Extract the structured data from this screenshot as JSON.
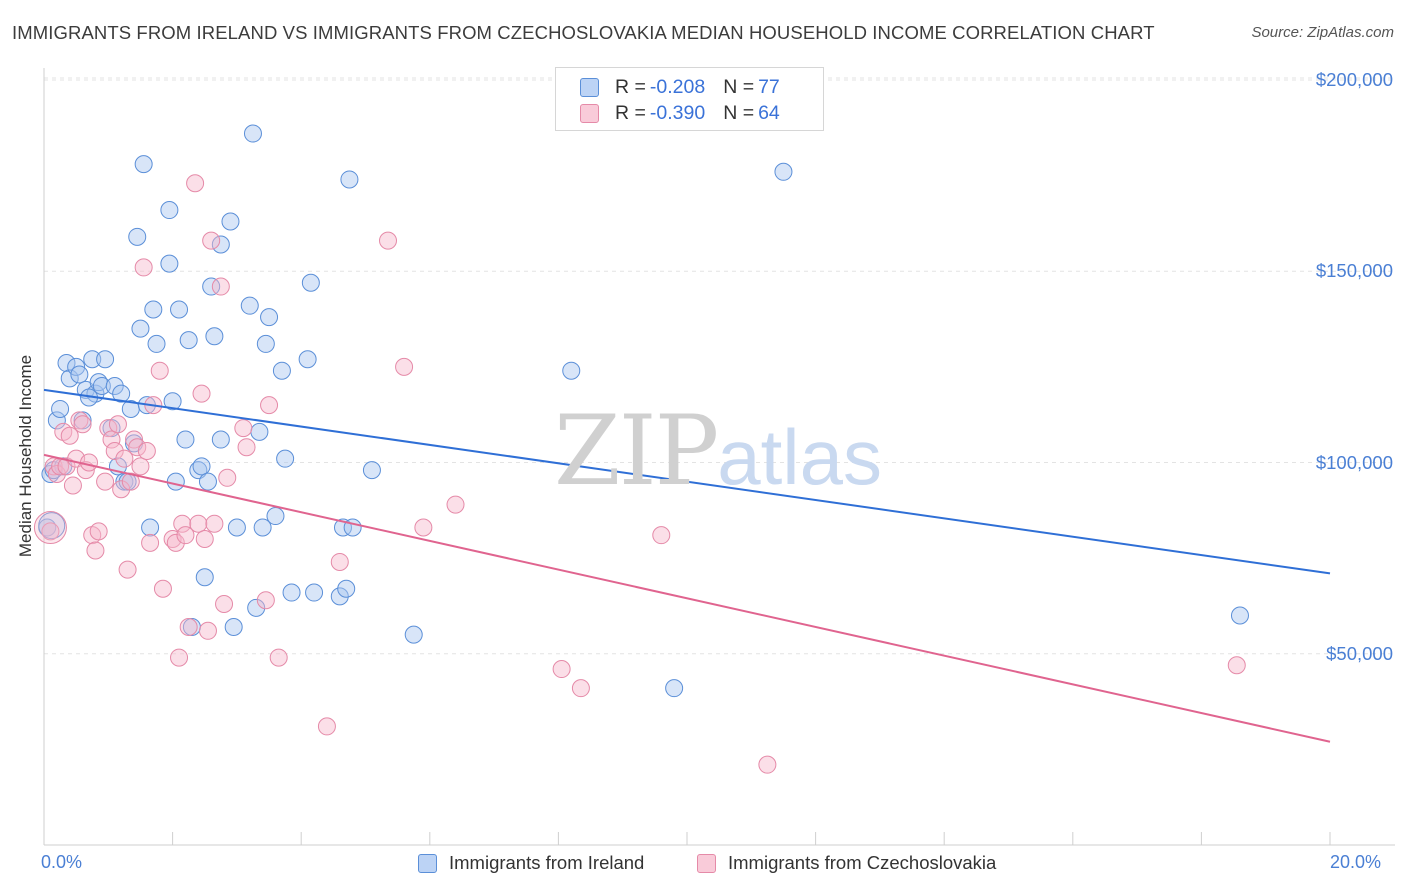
{
  "header": {
    "title": "IMMIGRANTS FROM IRELAND VS IMMIGRANTS FROM CZECHOSLOVAKIA MEDIAN HOUSEHOLD INCOME CORRELATION CHART",
    "source": "Source: ZipAtlas.com"
  },
  "watermark": {
    "zip": "ZIP",
    "atlas": "atlas"
  },
  "legend": {
    "r_key": "R = ",
    "n_key": "N = ",
    "rows": [
      {
        "r": "-0.208",
        "n": "77"
      },
      {
        "r": "-0.390",
        "n": "64"
      }
    ]
  },
  "chart_data": {
    "type": "scatter",
    "title": "IMMIGRANTS FROM IRELAND VS IMMIGRANTS FROM CZECHOSLOVAKIA MEDIAN HOUSEHOLD INCOME CORRELATION CHART",
    "xlabel": "",
    "ylabel": "Median Household Income",
    "xlim": [
      0,
      20
    ],
    "ylim": [
      0,
      205000
    ],
    "x_tick_labels": [
      "0.0%",
      "20.0%"
    ],
    "y_tick_labels": [
      "$200,000",
      "$150,000",
      "$100,000",
      "$50,000"
    ],
    "y_ticks": [
      200000,
      150000,
      100000,
      50000
    ],
    "grid": true,
    "legend_position": "top-center",
    "colors": {
      "ireland_fill": "#a9c6f0",
      "ireland_stroke": "#5b8fd8",
      "ireland_line": "#2f6fd6",
      "czech_fill": "#f6b9cc",
      "czech_stroke": "#e58aa8",
      "czech_line": "#e0648f",
      "axis_text": "#4a7fd4"
    },
    "series": [
      {
        "name": "Immigrants from Ireland",
        "r": -0.208,
        "n": 77,
        "trend": {
          "x": [
            0,
            20
          ],
          "y": [
            119000,
            71000
          ]
        },
        "points": [
          [
            0.1,
            97000
          ],
          [
            0.15,
            98000
          ],
          [
            0.2,
            111000
          ],
          [
            0.25,
            114000
          ],
          [
            0.35,
            126000
          ],
          [
            0.4,
            122000
          ],
          [
            0.5,
            125000
          ],
          [
            0.55,
            123000
          ],
          [
            0.6,
            111000
          ],
          [
            0.65,
            119000
          ],
          [
            0.75,
            127000
          ],
          [
            0.8,
            118000
          ],
          [
            0.85,
            121000
          ],
          [
            0.9,
            120000
          ],
          [
            0.95,
            127000
          ],
          [
            1.05,
            109000
          ],
          [
            1.1,
            120000
          ],
          [
            1.15,
            99000
          ],
          [
            1.2,
            118000
          ],
          [
            1.25,
            95000
          ],
          [
            1.3,
            95000
          ],
          [
            1.35,
            114000
          ],
          [
            1.4,
            105000
          ],
          [
            1.45,
            159000
          ],
          [
            1.5,
            135000
          ],
          [
            1.55,
            178000
          ],
          [
            1.6,
            115000
          ],
          [
            1.65,
            83000
          ],
          [
            1.7,
            140000
          ],
          [
            1.75,
            131000
          ],
          [
            1.95,
            152000
          ],
          [
            1.95,
            166000
          ],
          [
            2.0,
            116000
          ],
          [
            2.05,
            95000
          ],
          [
            2.1,
            140000
          ],
          [
            2.2,
            106000
          ],
          [
            2.25,
            132000
          ],
          [
            2.3,
            57000
          ],
          [
            2.4,
            98000
          ],
          [
            2.45,
            99000
          ],
          [
            2.5,
            70000
          ],
          [
            2.55,
            95000
          ],
          [
            2.6,
            146000
          ],
          [
            2.65,
            133000
          ],
          [
            2.75,
            106000
          ],
          [
            2.75,
            157000
          ],
          [
            2.9,
            163000
          ],
          [
            2.95,
            57000
          ],
          [
            3.0,
            83000
          ],
          [
            3.2,
            141000
          ],
          [
            3.25,
            186000
          ],
          [
            3.3,
            62000
          ],
          [
            3.35,
            108000
          ],
          [
            3.4,
            83000
          ],
          [
            3.45,
            131000
          ],
          [
            3.5,
            138000
          ],
          [
            3.6,
            86000
          ],
          [
            3.7,
            124000
          ],
          [
            3.75,
            101000
          ],
          [
            3.85,
            66000
          ],
          [
            4.1,
            127000
          ],
          [
            4.15,
            147000
          ],
          [
            4.2,
            66000
          ],
          [
            4.6,
            65000
          ],
          [
            4.65,
            83000
          ],
          [
            4.7,
            67000
          ],
          [
            4.75,
            174000
          ],
          [
            4.8,
            83000
          ],
          [
            5.1,
            98000
          ],
          [
            5.75,
            55000
          ],
          [
            8.2,
            124000
          ],
          [
            9.8,
            41000
          ],
          [
            11.5,
            176000
          ],
          [
            18.6,
            60000
          ],
          [
            0.05,
            83000
          ],
          [
            0.3,
            99000
          ],
          [
            0.7,
            117000
          ]
        ]
      },
      {
        "name": "Immigrants from Czechoslovakia",
        "r": -0.39,
        "n": 64,
        "trend": {
          "x": [
            0,
            20
          ],
          "y": [
            102000,
            27000
          ]
        },
        "points": [
          [
            0.1,
            82000
          ],
          [
            0.15,
            99000
          ],
          [
            0.2,
            97000
          ],
          [
            0.25,
            99000
          ],
          [
            0.3,
            108000
          ],
          [
            0.35,
            99000
          ],
          [
            0.4,
            107000
          ],
          [
            0.45,
            94000
          ],
          [
            0.5,
            101000
          ],
          [
            0.55,
            111000
          ],
          [
            0.6,
            110000
          ],
          [
            0.65,
            98000
          ],
          [
            0.7,
            100000
          ],
          [
            0.75,
            81000
          ],
          [
            0.8,
            77000
          ],
          [
            0.85,
            82000
          ],
          [
            0.95,
            95000
          ],
          [
            1.0,
            109000
          ],
          [
            1.05,
            106000
          ],
          [
            1.1,
            103000
          ],
          [
            1.15,
            110000
          ],
          [
            1.2,
            93000
          ],
          [
            1.25,
            101000
          ],
          [
            1.3,
            72000
          ],
          [
            1.35,
            95000
          ],
          [
            1.4,
            106000
          ],
          [
            1.45,
            104000
          ],
          [
            1.5,
            99000
          ],
          [
            1.55,
            151000
          ],
          [
            1.6,
            103000
          ],
          [
            1.65,
            79000
          ],
          [
            1.7,
            115000
          ],
          [
            1.8,
            124000
          ],
          [
            1.85,
            67000
          ],
          [
            2.0,
            80000
          ],
          [
            2.05,
            79000
          ],
          [
            2.1,
            49000
          ],
          [
            2.15,
            84000
          ],
          [
            2.2,
            81000
          ],
          [
            2.25,
            57000
          ],
          [
            2.35,
            173000
          ],
          [
            2.4,
            84000
          ],
          [
            2.45,
            118000
          ],
          [
            2.5,
            80000
          ],
          [
            2.55,
            56000
          ],
          [
            2.6,
            158000
          ],
          [
            2.65,
            84000
          ],
          [
            2.75,
            146000
          ],
          [
            2.8,
            63000
          ],
          [
            2.85,
            96000
          ],
          [
            3.1,
            109000
          ],
          [
            3.15,
            104000
          ],
          [
            3.45,
            64000
          ],
          [
            3.5,
            115000
          ],
          [
            3.65,
            49000
          ],
          [
            4.4,
            31000
          ],
          [
            4.6,
            74000
          ],
          [
            5.35,
            158000
          ],
          [
            5.6,
            125000
          ],
          [
            5.9,
            83000
          ],
          [
            6.4,
            89000
          ],
          [
            8.05,
            46000
          ],
          [
            8.35,
            41000
          ],
          [
            9.6,
            81000
          ]
        ]
      }
    ],
    "extra_points": {
      "czech": [
        [
          11.25,
          21000
        ],
        [
          18.55,
          47000
        ]
      ]
    }
  },
  "bottom_legend": {
    "items": [
      "Immigrants from Ireland",
      "Immigrants from Czechoslovakia"
    ]
  }
}
